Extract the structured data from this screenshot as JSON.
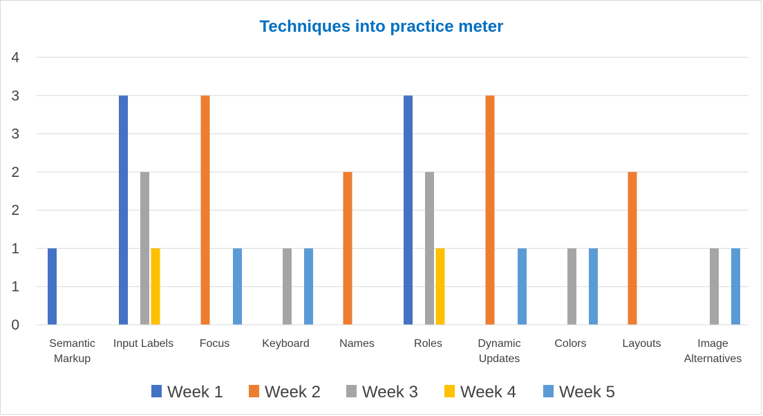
{
  "chart_data": {
    "type": "bar",
    "title": "Techniques into practice meter",
    "categories": [
      "Semantic Markup",
      "Input Labels",
      "Focus",
      "Keyboard",
      "Names",
      "Roles",
      "Dynamic Updates",
      "Colors",
      "Layouts",
      "Image Alternatives"
    ],
    "category_lines": [
      [
        "Semantic",
        "Markup"
      ],
      [
        "Input Labels"
      ],
      [
        "Focus"
      ],
      [
        "Keyboard"
      ],
      [
        "Names"
      ],
      [
        "Roles"
      ],
      [
        "Dynamic",
        "Updates"
      ],
      [
        "Colors"
      ],
      [
        "Layouts"
      ],
      [
        "Image",
        "Alternatives"
      ]
    ],
    "series": [
      {
        "name": "Week 1",
        "color": "#4472C4",
        "values": [
          1,
          3,
          0,
          0,
          0,
          3,
          0,
          0,
          0,
          0
        ]
      },
      {
        "name": "Week 2",
        "color": "#ED7D31",
        "values": [
          0,
          0,
          3,
          0,
          2,
          0,
          3,
          0,
          2,
          0
        ]
      },
      {
        "name": "Week 3",
        "color": "#A5A5A5",
        "values": [
          0,
          2,
          0,
          1,
          0,
          2,
          0,
          1,
          0,
          1
        ]
      },
      {
        "name": "Week 4",
        "color": "#FFC000",
        "values": [
          0,
          1,
          0,
          0,
          0,
          1,
          0,
          0,
          0,
          0
        ]
      },
      {
        "name": "Week 5",
        "color": "#5B9BD5",
        "values": [
          0,
          0,
          1,
          1,
          0,
          0,
          1,
          1,
          0,
          1
        ]
      }
    ],
    "ylim": [
      0,
      3.5
    ],
    "yticks": [
      0,
      0.5,
      1,
      1.5,
      2,
      2.5,
      3,
      3.5
    ],
    "ytick_labels": [
      "0",
      "1",
      "1",
      "2",
      "2",
      "3",
      "3",
      "4"
    ],
    "grid": true,
    "legend_position": "bottom",
    "title_color": "#0070C0"
  }
}
